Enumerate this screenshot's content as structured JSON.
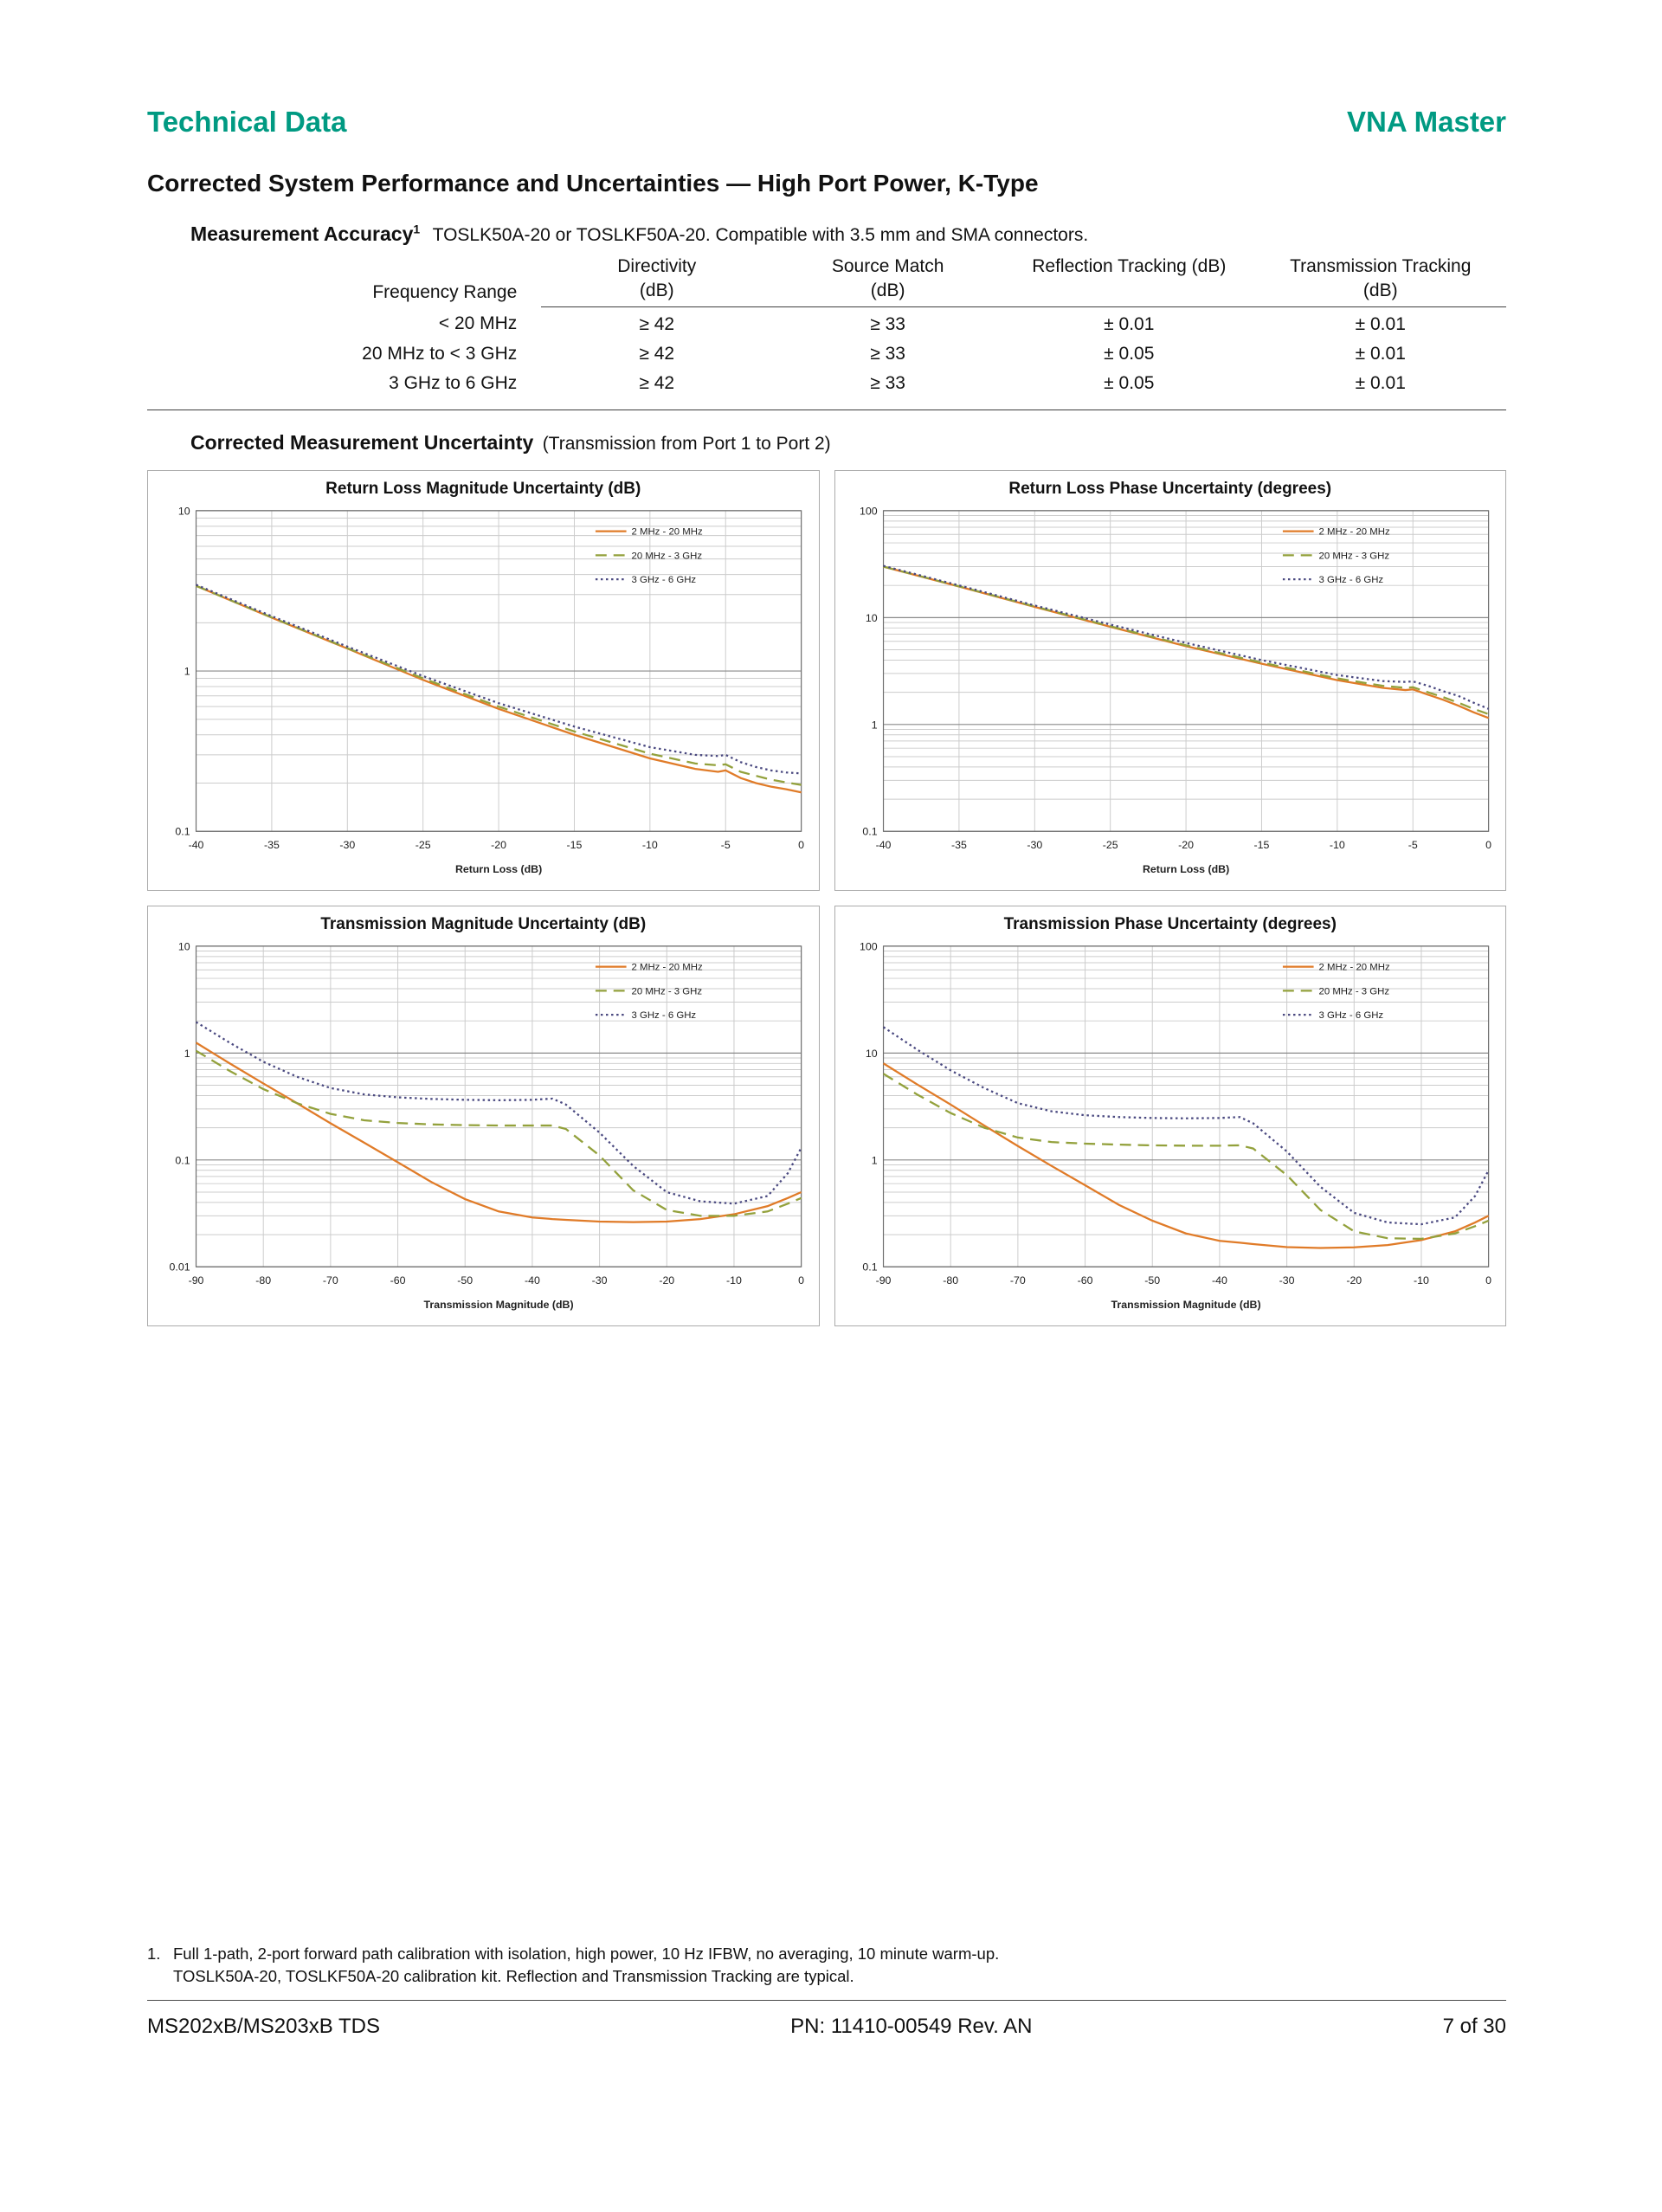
{
  "header": {
    "left": "Technical Data",
    "right": "VNA Master"
  },
  "colors": {
    "accent": "#009A82",
    "grid_minor": "#cccccc",
    "grid_major": "#8a8a8a",
    "axis": "#6e6e6e",
    "series_orange": "#E07B28",
    "series_olive": "#93A13C",
    "series_navy": "#4A4980"
  },
  "page_title": "Corrected System Performance and Uncertainties — High Port Power, K-Type",
  "accuracy": {
    "heading": "Measurement Accuracy",
    "footnote_ref": "1",
    "description": "TOSLK50A-20 or TOSLKF50A-20. Compatible with 3.5 mm and SMA connectors.",
    "table": {
      "row_header": "Frequency Range",
      "columns": [
        {
          "line1": "Directivity",
          "line2": "(dB)"
        },
        {
          "line1": "Source Match",
          "line2": "(dB)"
        },
        {
          "line1": "Reflection Tracking (dB)",
          "line2": ""
        },
        {
          "line1": "Transmission Tracking",
          "line2": "(dB)"
        }
      ],
      "rows": [
        {
          "range": "< 20 MHz",
          "directivity": "≥ 42",
          "source_match": "≥ 33",
          "reflection_tracking": "± 0.01",
          "transmission_tracking": "± 0.01"
        },
        {
          "range": "20 MHz to < 3 GHz",
          "directivity": "≥ 42",
          "source_match": "≥ 33",
          "reflection_tracking": "± 0.05",
          "transmission_tracking": "± 0.01"
        },
        {
          "range": "3 GHz to 6 GHz",
          "directivity": "≥ 42",
          "source_match": "≥ 33",
          "reflection_tracking": "± 0.05",
          "transmission_tracking": "± 0.01"
        }
      ]
    }
  },
  "uncertainty_section": {
    "heading": "Corrected Measurement Uncertainty",
    "subheading": "(Transmission from Port 1 to Port 2)"
  },
  "chart_data": [
    {
      "type": "line",
      "title": "Return Loss Magnitude Uncertainty (dB)",
      "xlabel": "Return Loss (dB)",
      "ylabel": "",
      "xlim": [
        -40,
        0
      ],
      "xticks": [
        -40,
        -35,
        -30,
        -25,
        -20,
        -15,
        -10,
        -5,
        0
      ],
      "ylim": [
        0.1,
        10
      ],
      "ylog": true,
      "grid": true,
      "legend_position": "top-right",
      "x": [
        -40,
        -35,
        -30,
        -25,
        -20,
        -15,
        -10,
        -7,
        -5.5,
        -5,
        -4,
        -3,
        -2,
        -1,
        0
      ],
      "series": [
        {
          "name": "2 MHz - 20 MHz",
          "color": "#E07B28",
          "style": "solid",
          "y": [
            3.4,
            2.15,
            1.38,
            0.88,
            0.58,
            0.4,
            0.285,
            0.245,
            0.235,
            0.24,
            0.215,
            0.2,
            0.19,
            0.183,
            0.175
          ]
        },
        {
          "name": "20 MHz - 3 GHz",
          "color": "#93A13C",
          "style": "dash",
          "y": [
            3.4,
            2.16,
            1.39,
            0.9,
            0.6,
            0.42,
            0.305,
            0.265,
            0.258,
            0.262,
            0.235,
            0.222,
            0.21,
            0.202,
            0.195
          ]
        },
        {
          "name": "3 GHz - 6 GHz",
          "color": "#4A4980",
          "style": "dot",
          "y": [
            3.45,
            2.2,
            1.42,
            0.93,
            0.63,
            0.45,
            0.335,
            0.3,
            0.295,
            0.3,
            0.27,
            0.252,
            0.24,
            0.233,
            0.23
          ]
        }
      ]
    },
    {
      "type": "line",
      "title": "Return Loss Phase Uncertainty (degrees)",
      "xlabel": "Return Loss (dB)",
      "ylabel": "",
      "xlim": [
        -40,
        0
      ],
      "xticks": [
        -40,
        -35,
        -30,
        -25,
        -20,
        -15,
        -10,
        -5,
        0
      ],
      "ylim": [
        0.1,
        100
      ],
      "ylog": true,
      "grid": true,
      "legend_position": "top-right",
      "x": [
        -40,
        -35,
        -30,
        -25,
        -20,
        -15,
        -10,
        -7,
        -5.5,
        -5,
        -4,
        -3,
        -2,
        -1,
        0
      ],
      "series": [
        {
          "name": "2 MHz - 20 MHz",
          "color": "#E07B28",
          "style": "solid",
          "y": [
            30,
            19.5,
            12.6,
            8.2,
            5.4,
            3.7,
            2.6,
            2.2,
            2.1,
            2.13,
            1.9,
            1.7,
            1.5,
            1.3,
            1.15
          ]
        },
        {
          "name": "20 MHz - 3 GHz",
          "color": "#93A13C",
          "style": "dash",
          "y": [
            30,
            19.6,
            12.7,
            8.3,
            5.5,
            3.8,
            2.7,
            2.3,
            2.2,
            2.23,
            2.0,
            1.8,
            1.6,
            1.4,
            1.25
          ]
        },
        {
          "name": "3 GHz - 6 GHz",
          "color": "#4A4980",
          "style": "dot",
          "y": [
            30.5,
            20,
            13,
            8.6,
            5.8,
            4.0,
            2.9,
            2.55,
            2.5,
            2.53,
            2.3,
            2.05,
            1.85,
            1.6,
            1.4
          ]
        }
      ]
    },
    {
      "type": "line",
      "title": "Transmission Magnitude Uncertainty (dB)",
      "xlabel": "Transmission Magnitude (dB)",
      "ylabel": "",
      "xlim": [
        -90,
        0
      ],
      "xticks": [
        -90,
        -80,
        -70,
        -60,
        -50,
        -40,
        -30,
        -20,
        -10,
        0
      ],
      "ylim": [
        0.01,
        10
      ],
      "ylog": true,
      "grid": true,
      "legend_position": "top-right",
      "x": [
        -90,
        -85,
        -80,
        -75,
        -70,
        -65,
        -60,
        -55,
        -50,
        -45,
        -40,
        -37,
        -35,
        -30,
        -25,
        -20,
        -15,
        -10,
        -5,
        -2,
        0
      ],
      "series": [
        {
          "name": "2 MHz - 20 MHz",
          "color": "#E07B28",
          "style": "solid",
          "y": [
            1.25,
            0.8,
            0.52,
            0.34,
            0.22,
            0.145,
            0.095,
            0.062,
            0.043,
            0.033,
            0.029,
            0.028,
            0.0275,
            0.0265,
            0.0262,
            0.0265,
            0.028,
            0.031,
            0.037,
            0.044,
            0.05
          ]
        },
        {
          "name": "20 MHz - 3 GHz",
          "color": "#93A13C",
          "style": "dash",
          "y": [
            1.05,
            0.68,
            0.46,
            0.34,
            0.27,
            0.235,
            0.222,
            0.215,
            0.212,
            0.21,
            0.21,
            0.21,
            0.195,
            0.11,
            0.052,
            0.034,
            0.03,
            0.03,
            0.033,
            0.039,
            0.044
          ]
        },
        {
          "name": "3 GHz - 6 GHz",
          "color": "#4A4980",
          "style": "dot",
          "y": [
            1.95,
            1.25,
            0.83,
            0.6,
            0.47,
            0.41,
            0.385,
            0.372,
            0.365,
            0.362,
            0.365,
            0.375,
            0.33,
            0.18,
            0.088,
            0.05,
            0.041,
            0.039,
            0.046,
            0.075,
            0.13
          ]
        }
      ]
    },
    {
      "type": "line",
      "title": "Transmission Phase Uncertainty (degrees)",
      "xlabel": "Transmission Magnitude (dB)",
      "ylabel": "",
      "xlim": [
        -90,
        0
      ],
      "xticks": [
        -90,
        -80,
        -70,
        -60,
        -50,
        -40,
        -30,
        -20,
        -10,
        0
      ],
      "ylim": [
        0.1,
        100
      ],
      "ylog": true,
      "grid": true,
      "legend_position": "top-right",
      "x": [
        -90,
        -85,
        -80,
        -75,
        -70,
        -65,
        -60,
        -55,
        -50,
        -45,
        -40,
        -37,
        -35,
        -30,
        -25,
        -20,
        -15,
        -10,
        -5,
        -2,
        0
      ],
      "series": [
        {
          "name": "2 MHz - 20 MHz",
          "color": "#E07B28",
          "style": "solid",
          "y": [
            8.0,
            5.1,
            3.3,
            2.1,
            1.35,
            0.88,
            0.58,
            0.38,
            0.27,
            0.205,
            0.175,
            0.168,
            0.163,
            0.153,
            0.15,
            0.152,
            0.16,
            0.178,
            0.215,
            0.26,
            0.3
          ]
        },
        {
          "name": "20 MHz - 3 GHz",
          "color": "#93A13C",
          "style": "dash",
          "y": [
            6.4,
            4.1,
            2.75,
            2.0,
            1.62,
            1.47,
            1.42,
            1.39,
            1.37,
            1.36,
            1.36,
            1.37,
            1.28,
            0.72,
            0.34,
            0.215,
            0.185,
            0.183,
            0.205,
            0.24,
            0.27
          ]
        },
        {
          "name": "3 GHz - 6 GHz",
          "color": "#4A4980",
          "style": "dot",
          "y": [
            17.5,
            10.8,
            6.9,
            4.7,
            3.4,
            2.85,
            2.62,
            2.52,
            2.47,
            2.45,
            2.47,
            2.52,
            2.2,
            1.2,
            0.56,
            0.32,
            0.26,
            0.25,
            0.29,
            0.46,
            0.8
          ]
        }
      ]
    }
  ],
  "footnote": {
    "number": "1.",
    "line1": "Full 1-path, 2-port forward path calibration with isolation, high power, 10 Hz IFBW, no averaging, 10 minute warm-up.",
    "line2": "TOSLK50A-20, TOSLKF50A-20 calibration kit. Reflection and Transmission Tracking are typical."
  },
  "footer": {
    "left": "MS202xB/MS203xB TDS",
    "center": "PN: 11410-00549 Rev. AN",
    "right": "7 of 30"
  }
}
